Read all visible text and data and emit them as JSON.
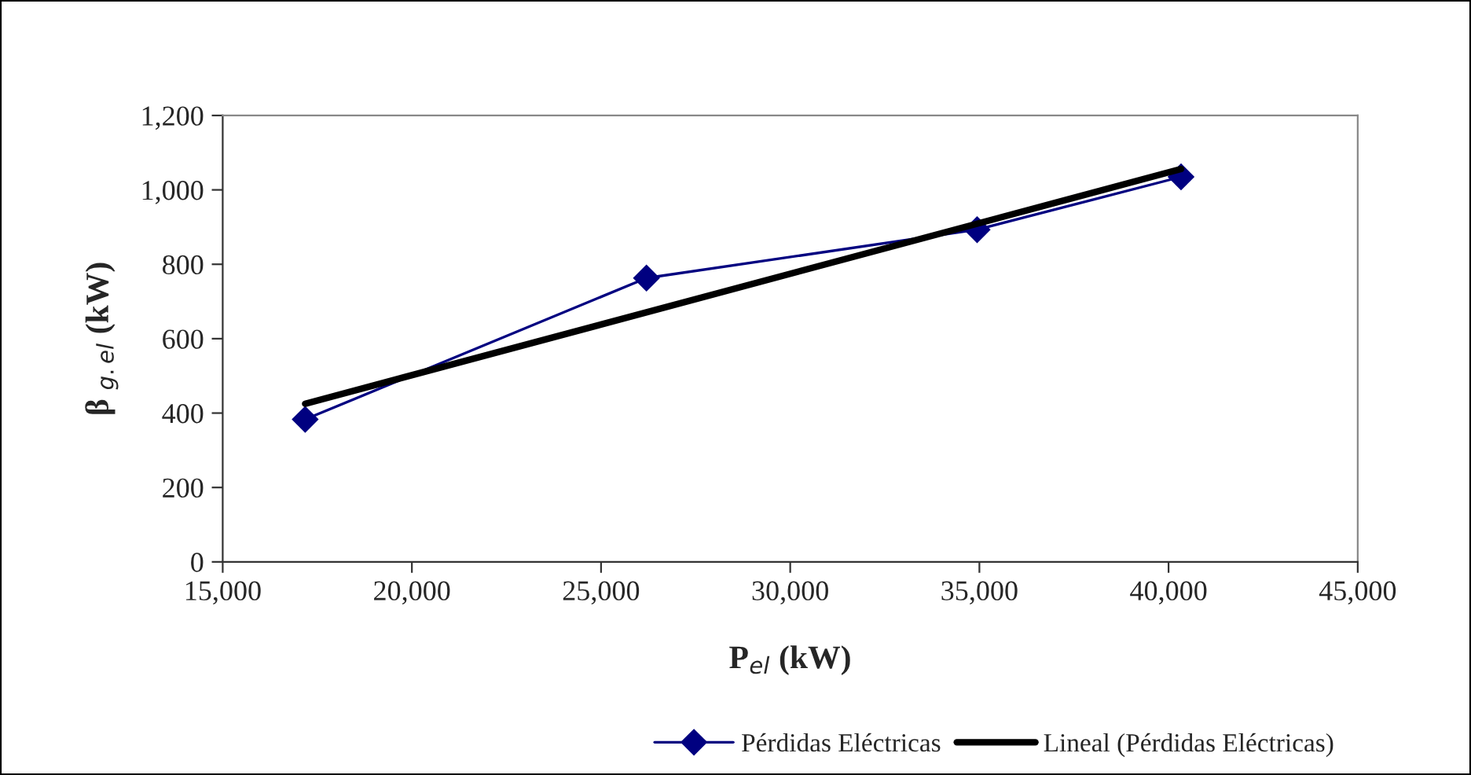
{
  "chart_data": {
    "type": "line",
    "xlabel": "P$_{el}$ (kW)",
    "ylabel": "β $_{g.el}$ (kW)",
    "xlim": [
      15000,
      45000
    ],
    "xticks": [
      {
        "value": 15000,
        "label": "15,000"
      },
      {
        "value": 20000,
        "label": "20,000"
      },
      {
        "value": 25000,
        "label": "25,000"
      },
      {
        "value": 30000,
        "label": "30,000"
      },
      {
        "value": 35000,
        "label": "35,000"
      },
      {
        "value": 40000,
        "label": "40,000"
      },
      {
        "value": 45000,
        "label": "45,000"
      }
    ],
    "ylim": [
      0,
      1200
    ],
    "yticks": [
      0,
      200,
      400,
      600,
      800,
      {
        "value": 1000,
        "label": "1,000"
      },
      {
        "value": 1200,
        "label": "1,200"
      }
    ],
    "series": [
      {
        "name": "Pérdidas Eléctricas",
        "color": "#000080",
        "marker": "diamond",
        "x": [
          17180,
          26200,
          34940,
          40330
        ],
        "values": [
          383,
          763,
          893,
          1035
        ]
      },
      {
        "name": "Lineal (Pérdidas Eléctricas)",
        "color": "#000000",
        "marker": "none",
        "x": [
          17180,
          40330
        ],
        "values": [
          425,
          1056
        ]
      }
    ],
    "grid": false,
    "legend": "bottom",
    "line_style": "solid"
  }
}
